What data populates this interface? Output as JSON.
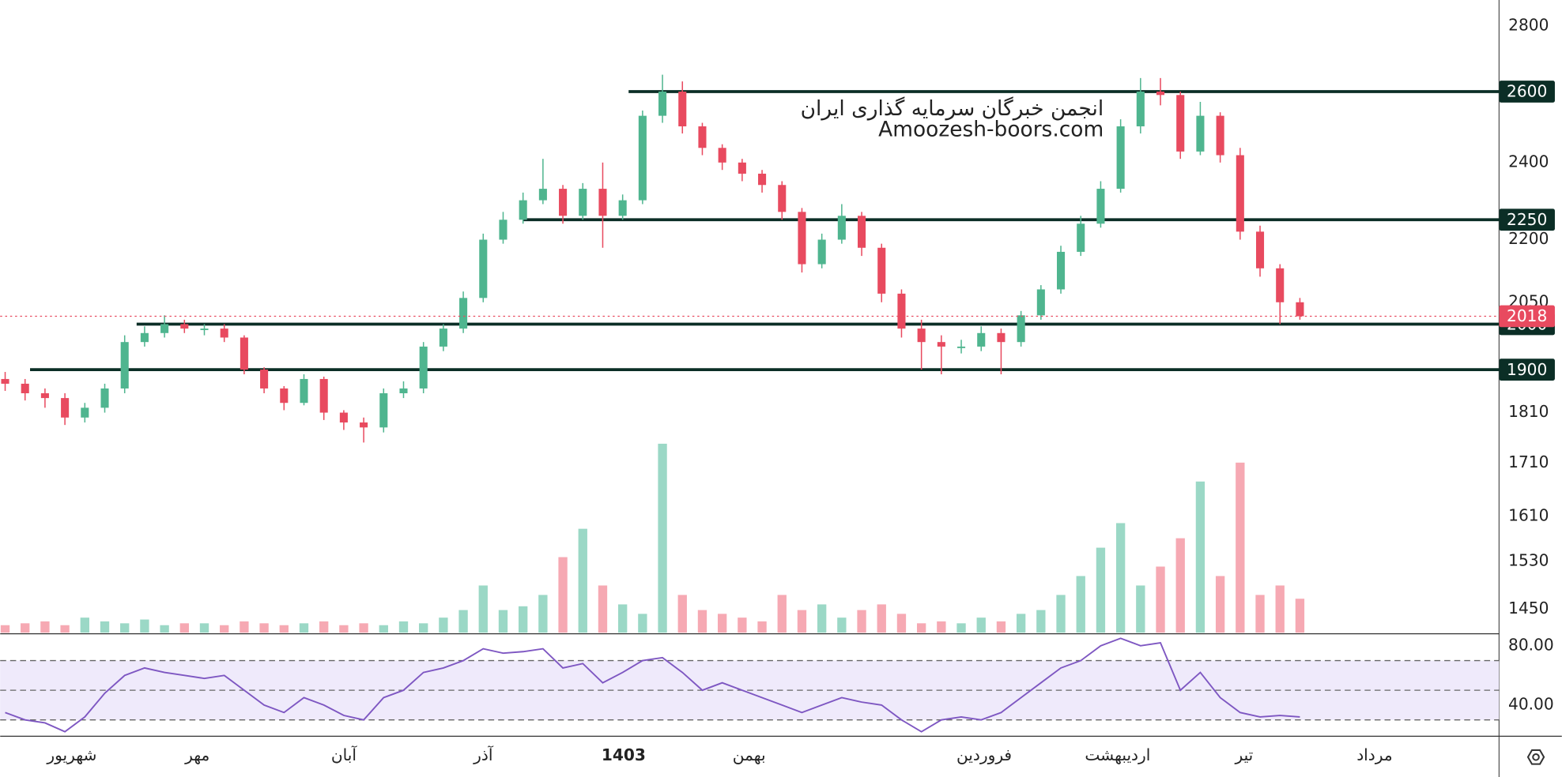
{
  "chart_data": {
    "type": "candlestick",
    "watermark": [
      "انجمن خبرگان سرمایه گذاری ایران",
      "Amoozesh-boors.com"
    ],
    "xlim": [
      -0.25,
      75
    ],
    "xticks": [
      {
        "value": 3.35,
        "label": "شهریور"
      },
      {
        "value": 9.65,
        "label": "مهر"
      },
      {
        "value": 17,
        "label": "آبان"
      },
      {
        "value": 24,
        "label": "آذر"
      },
      {
        "value": 31.05,
        "label": "1403"
      },
      {
        "value": 37.35,
        "label": "بهمن"
      },
      {
        "value": 49.15,
        "label": "فروردین"
      },
      {
        "value": 55.85,
        "label": "اردیبهشت"
      },
      {
        "value": 62.2,
        "label": "تیر"
      },
      {
        "value": 68.75,
        "label": "مرداد"
      }
    ],
    "ylim": [
      1412,
      2883
    ],
    "log_scale": true,
    "yticks": [
      2800,
      2400,
      2200,
      2050,
      1810,
      1710,
      1610,
      1530,
      1450
    ],
    "up_color": "#4fb58f",
    "down_color": "#e84a5f",
    "series": {
      "open": [
        1880,
        1870,
        1850,
        1840,
        1800,
        1820,
        1860,
        1960,
        1980,
        2000,
        1990,
        1990,
        1970,
        1900,
        1860,
        1830,
        1880,
        1810,
        1790,
        1780,
        1850,
        1860,
        1950,
        1990,
        2060,
        2200,
        2250,
        2300,
        2330,
        2260,
        2330,
        2260,
        2300,
        2530,
        2600,
        2500,
        2440,
        2400,
        2370,
        2340,
        2270,
        2140,
        2200,
        2260,
        2180,
        2070,
        1990,
        1960,
        1950,
        1950,
        1980,
        1960,
        2020,
        2080,
        2170,
        2240,
        2330,
        2500,
        2600,
        2590,
        2430,
        2530,
        2420,
        2220,
        2130,
        2050
      ],
      "high": [
        1895,
        1880,
        1860,
        1850,
        1830,
        1870,
        1975,
        1995,
        2020,
        2010,
        2000,
        2000,
        1975,
        1905,
        1865,
        1890,
        1885,
        1815,
        1800,
        1860,
        1875,
        1960,
        2000,
        2075,
        2215,
        2270,
        2320,
        2410,
        2340,
        2345,
        2400,
        2315,
        2545,
        2650,
        2630,
        2510,
        2450,
        2410,
        2380,
        2350,
        2280,
        2215,
        2290,
        2270,
        2190,
        2080,
        2010,
        1975,
        1965,
        1995,
        1990,
        2030,
        2090,
        2185,
        2260,
        2350,
        2520,
        2640,
        2640,
        2600,
        2570,
        2540,
        2440,
        2235,
        2140,
        2060
      ],
      "low": [
        1855,
        1835,
        1820,
        1785,
        1790,
        1810,
        1850,
        1950,
        1970,
        1980,
        1975,
        1960,
        1890,
        1850,
        1815,
        1825,
        1795,
        1775,
        1750,
        1770,
        1840,
        1850,
        1940,
        1980,
        2050,
        2190,
        2240,
        2290,
        2240,
        2250,
        2180,
        2250,
        2290,
        2510,
        2480,
        2420,
        2380,
        2350,
        2320,
        2250,
        2120,
        2130,
        2190,
        2160,
        2050,
        1970,
        1900,
        1890,
        1935,
        1940,
        1890,
        1950,
        2010,
        2070,
        2160,
        2230,
        2320,
        2480,
        2560,
        2410,
        2420,
        2400,
        2200,
        2110,
        2000,
        2010
      ],
      "close": [
        1870,
        1850,
        1840,
        1800,
        1820,
        1860,
        1960,
        1980,
        2000,
        1990,
        1990,
        1970,
        1900,
        1860,
        1830,
        1880,
        1810,
        1790,
        1780,
        1850,
        1860,
        1950,
        1990,
        2060,
        2200,
        2250,
        2300,
        2330,
        2260,
        2330,
        2260,
        2300,
        2530,
        2600,
        2500,
        2440,
        2400,
        2370,
        2340,
        2270,
        2140,
        2200,
        2260,
        2180,
        2070,
        1990,
        1960,
        1950,
        1950,
        1980,
        1960,
        2020,
        2080,
        2170,
        2240,
        2330,
        2500,
        2600,
        2590,
        2430,
        2530,
        2420,
        2220,
        2130,
        2050,
        2018
      ]
    },
    "volume": [
      4,
      5,
      6,
      4,
      8,
      6,
      5,
      7,
      4,
      5,
      5,
      4,
      6,
      5,
      4,
      5,
      6,
      4,
      5,
      4,
      6,
      5,
      8,
      12,
      25,
      12,
      14,
      20,
      40,
      55,
      25,
      15,
      10,
      100,
      20,
      12,
      10,
      8,
      6,
      20,
      12,
      15,
      8,
      12,
      15,
      10,
      5,
      6,
      5,
      8,
      6,
      10,
      12,
      20,
      30,
      45,
      58,
      25,
      35,
      50,
      80,
      30,
      90,
      20,
      25,
      18
    ],
    "levels": [
      2600,
      2250,
      2000,
      1900
    ],
    "levels_from": [
      31.3,
      26,
      6.6,
      1.25
    ],
    "rsi": {
      "values": [
        35,
        30,
        28,
        22,
        32,
        48,
        60,
        65,
        62,
        60,
        58,
        60,
        50,
        40,
        35,
        45,
        40,
        33,
        30,
        45,
        50,
        62,
        65,
        70,
        78,
        75,
        76,
        78,
        65,
        68,
        55,
        62,
        70,
        72,
        62,
        50,
        55,
        50,
        45,
        40,
        35,
        40,
        45,
        42,
        40,
        30,
        22,
        30,
        32,
        30,
        35,
        45,
        55,
        65,
        70,
        80,
        85,
        80,
        82,
        50,
        62,
        45,
        35,
        32,
        33,
        32
      ],
      "color": "#7e57c2",
      "ylim": [
        19,
        88.1
      ],
      "yticks": [
        {
          "value": 80,
          "label": "80.00"
        },
        {
          "value": 40,
          "label": "40.00"
        }
      ],
      "lines": [
        70,
        50,
        30
      ]
    }
  }
}
